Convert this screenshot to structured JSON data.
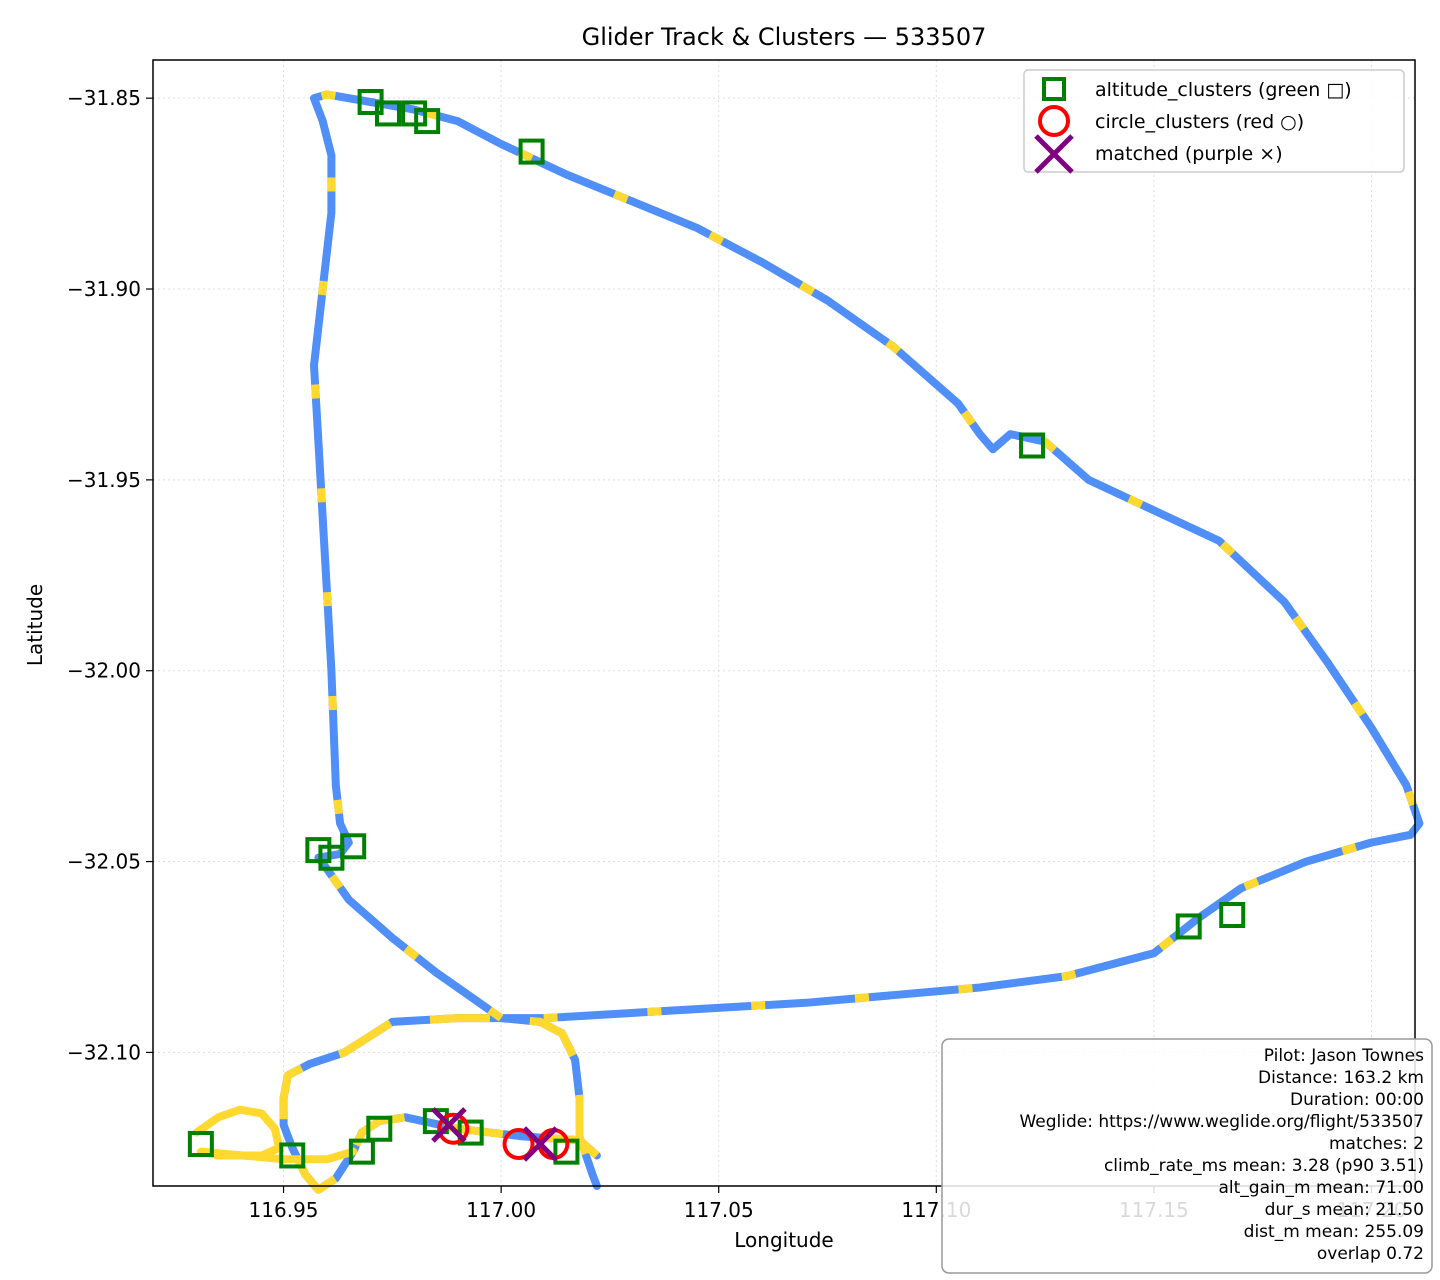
{
  "chart_data": {
    "type": "scatter",
    "title": "Glider Track & Clusters — 533507",
    "xlabel": "Longitude",
    "ylabel": "Latitude",
    "xlim": [
      116.92,
      117.21
    ],
    "ylim": [
      -32.135,
      -31.84
    ],
    "xticks": [
      116.95,
      117.0,
      117.05,
      117.1,
      117.15,
      117.2
    ],
    "xtick_labels": [
      "116.95",
      "117.00",
      "117.05",
      "117.10",
      "117.15",
      "117.20"
    ],
    "yticks": [
      -31.85,
      -31.9,
      -31.95,
      -32.0,
      -32.05,
      -32.1
    ],
    "ytick_labels": [
      "−31.85",
      "−31.90",
      "−31.95",
      "−32.00",
      "−32.05",
      "−32.10"
    ],
    "grid": true,
    "legend_position": "top-right",
    "legend": [
      {
        "label": "altitude_clusters (green □)",
        "marker": "square",
        "color": "#008000"
      },
      {
        "label": "circle_clusters (red ○)",
        "marker": "circle",
        "color": "#ff0000"
      },
      {
        "label": "matched (purple ×)",
        "marker": "x",
        "color": "#800080"
      }
    ],
    "track": {
      "colors": {
        "cruise": "#4f8ff7",
        "climb": "#ffd92f"
      },
      "points": [
        [
          117.022,
          -32.127
        ],
        [
          117.018,
          -32.123
        ],
        [
          117.005,
          -32.122
        ],
        [
          116.99,
          -32.12
        ],
        [
          116.978,
          -32.117
        ],
        [
          116.972,
          -32.118
        ],
        [
          116.968,
          -32.121
        ],
        [
          116.966,
          -32.126
        ],
        [
          116.962,
          -32.133
        ],
        [
          116.958,
          -32.136
        ],
        [
          116.955,
          -32.132
        ],
        [
          116.952,
          -32.125
        ],
        [
          116.95,
          -32.119
        ],
        [
          116.95,
          -32.112
        ],
        [
          116.951,
          -32.106
        ],
        [
          116.956,
          -32.103
        ],
        [
          116.964,
          -32.1
        ],
        [
          116.975,
          -32.092
        ],
        [
          116.99,
          -32.091
        ],
        [
          117.0,
          -32.091
        ],
        [
          117.009,
          -32.092
        ],
        [
          117.014,
          -32.095
        ],
        [
          117.017,
          -32.102
        ],
        [
          117.018,
          -32.112
        ],
        [
          117.018,
          -32.122
        ],
        [
          117.021,
          -32.132
        ],
        [
          117.022,
          -32.135
        ]
      ],
      "segment2": [
        [
          116.93,
          -32.121
        ],
        [
          116.935,
          -32.117
        ],
        [
          116.94,
          -32.115
        ],
        [
          116.945,
          -32.116
        ],
        [
          116.948,
          -32.12
        ],
        [
          116.949,
          -32.125
        ],
        [
          116.945,
          -32.127
        ],
        [
          116.935,
          -32.127
        ],
        [
          116.931,
          -32.126
        ],
        [
          116.95,
          -32.128
        ],
        [
          116.96,
          -32.128
        ],
        [
          116.966,
          -32.126
        ]
      ],
      "main_loop": [
        [
          117.0,
          -32.091
        ],
        [
          116.995,
          -32.087
        ],
        [
          116.985,
          -32.079
        ],
        [
          116.975,
          -32.07
        ],
        [
          116.965,
          -32.06
        ],
        [
          116.96,
          -32.052
        ],
        [
          116.958,
          -32.049
        ],
        [
          116.963,
          -32.048
        ],
        [
          116.965,
          -32.045
        ],
        [
          116.963,
          -32.04
        ],
        [
          116.962,
          -32.03
        ],
        [
          116.961,
          -32.0
        ],
        [
          116.96,
          -31.98
        ],
        [
          116.959,
          -31.96
        ],
        [
          116.958,
          -31.94
        ],
        [
          116.957,
          -31.92
        ],
        [
          116.959,
          -31.9
        ],
        [
          116.961,
          -31.88
        ],
        [
          116.961,
          -31.865
        ],
        [
          116.959,
          -31.856
        ],
        [
          116.957,
          -31.85
        ],
        [
          116.96,
          -31.849
        ],
        [
          116.97,
          -31.851
        ],
        [
          116.98,
          -31.853
        ],
        [
          116.99,
          -31.856
        ],
        [
          117.0,
          -31.862
        ],
        [
          117.015,
          -31.87
        ],
        [
          117.03,
          -31.877
        ],
        [
          117.045,
          -31.884
        ],
        [
          117.06,
          -31.893
        ],
        [
          117.075,
          -31.903
        ],
        [
          117.09,
          -31.915
        ],
        [
          117.105,
          -31.93
        ],
        [
          117.11,
          -31.938
        ],
        [
          117.113,
          -31.942
        ],
        [
          117.117,
          -31.938
        ],
        [
          117.125,
          -31.94
        ],
        [
          117.135,
          -31.95
        ],
        [
          117.15,
          -31.958
        ],
        [
          117.165,
          -31.966
        ],
        [
          117.18,
          -31.982
        ],
        [
          117.19,
          -31.998
        ],
        [
          117.2,
          -32.015
        ],
        [
          117.208,
          -32.03
        ],
        [
          117.211,
          -32.04
        ],
        [
          117.209,
          -32.043
        ],
        [
          117.2,
          -32.045
        ],
        [
          117.185,
          -32.05
        ],
        [
          117.17,
          -32.057
        ],
        [
          117.16,
          -32.065
        ],
        [
          117.15,
          -32.074
        ],
        [
          117.13,
          -32.08
        ],
        [
          117.11,
          -32.083
        ],
        [
          117.09,
          -32.085
        ],
        [
          117.07,
          -32.087
        ],
        [
          117.04,
          -32.089
        ],
        [
          117.01,
          -32.091
        ],
        [
          117.0,
          -32.091
        ]
      ]
    },
    "altitude_clusters": [
      [
        116.97,
        -31.851
      ],
      [
        116.974,
        -31.854
      ],
      [
        116.98,
        -31.854
      ],
      [
        116.983,
        -31.856
      ],
      [
        117.007,
        -31.864
      ],
      [
        117.122,
        -31.941
      ],
      [
        116.958,
        -32.047
      ],
      [
        116.961,
        -32.049
      ],
      [
        116.966,
        -32.046
      ],
      [
        117.158,
        -32.067
      ],
      [
        117.168,
        -32.064
      ],
      [
        116.931,
        -32.124
      ],
      [
        116.952,
        -32.127
      ],
      [
        116.968,
        -32.126
      ],
      [
        116.972,
        -32.12
      ],
      [
        116.985,
        -32.118
      ],
      [
        116.993,
        -32.121
      ],
      [
        117.015,
        -32.126
      ]
    ],
    "circle_clusters": [
      [
        116.989,
        -32.12
      ],
      [
        117.004,
        -32.124
      ],
      [
        117.012,
        -32.124
      ]
    ],
    "matched": [
      [
        116.988,
        -32.119
      ],
      [
        117.009,
        -32.124
      ]
    ],
    "info_box": [
      "Pilot: Jason Townes",
      "Distance: 163.2 km",
      "Duration: 00:00",
      "Weglide: https://www.weglide.org/flight/533507",
      "matches: 2",
      "climb_rate_ms mean: 3.28 (p90 3.51)",
      "alt_gain_m mean: 71.00",
      "dur_s mean: 21.50",
      "dist_m mean: 255.09",
      "overlap 0.72"
    ]
  }
}
